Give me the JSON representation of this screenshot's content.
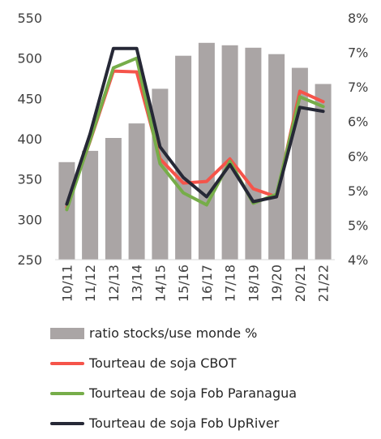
{
  "chart_data": {
    "type": "bar+line",
    "categories": [
      "10/11",
      "11/12",
      "12/13",
      "13/14",
      "14/15",
      "15/16",
      "16/17",
      "17/18",
      "18/19",
      "19/20",
      "20/21",
      "21/22"
    ],
    "y_left": {
      "ylim": [
        250,
        550
      ],
      "ticks": [
        "550",
        "500",
        "450",
        "400",
        "350",
        "300",
        "250"
      ]
    },
    "y_right": {
      "ylim": [
        4,
        8
      ],
      "ticks": [
        "8%",
        "7%",
        "7%",
        "6%",
        "6%",
        "5%",
        "5%",
        "4%"
      ]
    },
    "bars": {
      "name": "ratio stocks/use monde %",
      "color": "#aaa5a5",
      "values": [
        371,
        385,
        401,
        419,
        462,
        503,
        519,
        516,
        513,
        505,
        488,
        468
      ]
    },
    "series": [
      {
        "name": "Tourteau de soja CBOT",
        "color": "#f5544a",
        "values": [
          315,
          397,
          484,
          483,
          375,
          345,
          347,
          375,
          338,
          328,
          459,
          446
        ]
      },
      {
        "name": "Tourteau de soja Fob Paranagua",
        "color": "#76ad49",
        "values": [
          312,
          398,
          488,
          500,
          369,
          333,
          318,
          372,
          320,
          331,
          452,
          440
        ]
      },
      {
        "name": "Tourteau de soja Fob UpRiver",
        "color": "#262836",
        "values": [
          319,
          406,
          512,
          512,
          390,
          352,
          328,
          368,
          322,
          328,
          439,
          434
        ]
      }
    ],
    "grid": false,
    "legend_position": "bottom"
  }
}
